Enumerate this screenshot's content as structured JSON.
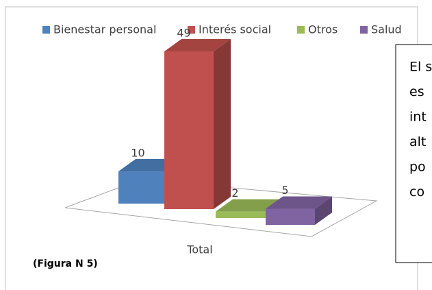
{
  "chart_data": {
    "type": "bar",
    "categories": [
      "Total"
    ],
    "series": [
      {
        "name": "Bienestar personal",
        "color": "#4f81bd",
        "values": [
          10
        ]
      },
      {
        "name": "Interés social",
        "color": "#c0504d",
        "values": [
          49
        ]
      },
      {
        "name": "Otros",
        "color": "#9bbb59",
        "values": [
          2
        ]
      },
      {
        "name": "Salud",
        "color": "#8064a2",
        "values": [
          5
        ]
      }
    ],
    "legend": "top"
  },
  "figure_label": "(Figura  N 5)",
  "text_box": {
    "lines": [
      "El s",
      "es",
      "int",
      "alt",
      "po",
      "co"
    ]
  }
}
